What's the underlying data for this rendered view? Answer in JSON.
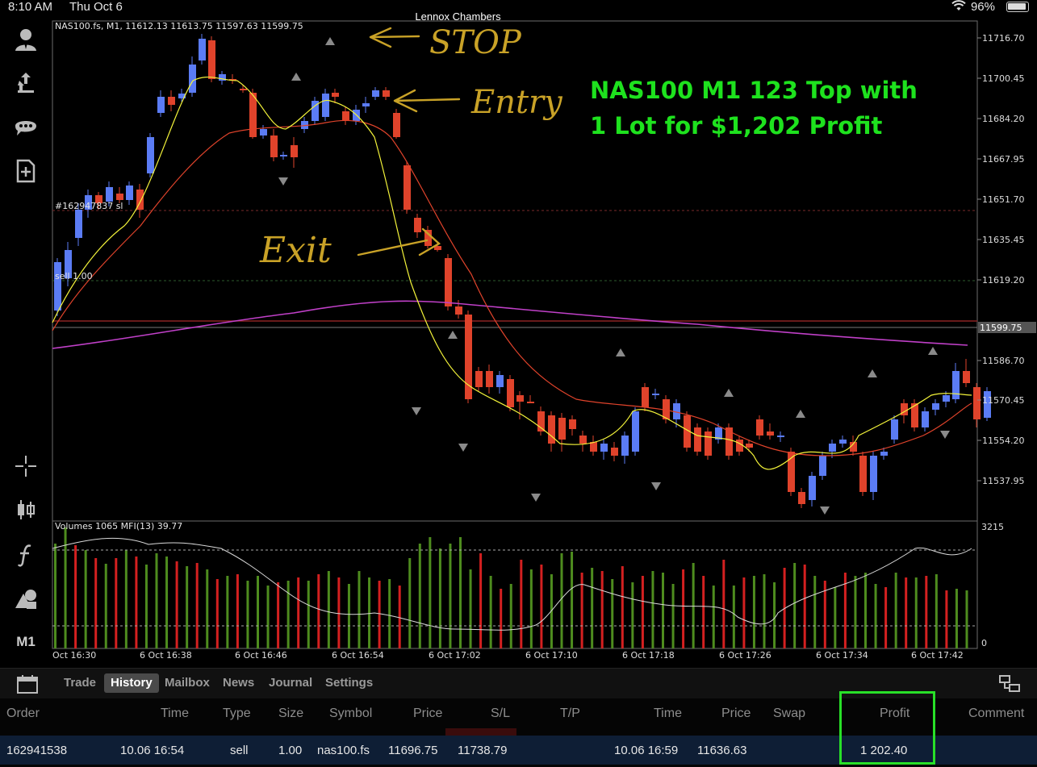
{
  "status_bar": {
    "time": "8:10 AM",
    "date": "Thu Oct 6",
    "owner": "Lennox Chambers",
    "battery": "96%"
  },
  "toolbar": {
    "items": [
      "account-icon",
      "transfer-icon",
      "chat-icon",
      "new-order-icon",
      "crosshair-icon",
      "candlestick-icon",
      "indicator-icon",
      "objects-icon"
    ],
    "timeframe": "M1"
  },
  "chart": {
    "info": "NAS100.fs, M1, 11612.13 11613.75 11597.63 11599.75",
    "order_label": "#162947837 sl",
    "position_label": "sell 1.00",
    "price_ticks": [
      "11716.70",
      "11700.45",
      "11684.20",
      "11667.95",
      "11651.70",
      "11635.45",
      "11619.20",
      "11586.70",
      "11570.45",
      "11554.20",
      "11537.95"
    ],
    "current_price": "11599.75",
    "volume_label": "Volumes 1065 MFI(13) 39.77",
    "volume_max": "3215",
    "volume_min": "0",
    "time_ticks": [
      "Oct 16:30",
      "6 Oct 16:38",
      "6 Oct 16:46",
      "6 Oct 16:54",
      "6 Oct 17:02",
      "6 Oct 17:10",
      "6 Oct 17:18",
      "6 Oct 17:26",
      "6 Oct 17:34",
      "6 Oct 17:42"
    ],
    "colors": {
      "bull": "#5b7cf5",
      "bear": "#e0432b",
      "ma_fast": "#f4f43a",
      "ma_slow": "#e0432b",
      "ma_long": "#c040c8",
      "vol_up": "#4e8c1e",
      "vol_down": "#d42020",
      "annotation": "#c9a227"
    }
  },
  "annotations": {
    "stop": "STOP",
    "entry": "Entry",
    "exit": "Exit"
  },
  "headline": {
    "line1": "NAS100 M1 123 Top with",
    "line2": "1 Lot for $1,202 Profit"
  },
  "tabs": [
    {
      "label": "Trade",
      "active": false
    },
    {
      "label": "History",
      "active": true
    },
    {
      "label": "Mailbox",
      "active": false
    },
    {
      "label": "News",
      "active": false
    },
    {
      "label": "Journal",
      "active": false
    },
    {
      "label": "Settings",
      "active": false
    }
  ],
  "history": {
    "columns": [
      "Order",
      "Time",
      "Type",
      "Size",
      "Symbol",
      "Price",
      "S/L",
      "T/P",
      "Time",
      "Price",
      "Swap",
      "Profit",
      "Comment"
    ],
    "row": {
      "order": "162941538",
      "open_time": "10.06 16:54",
      "type": "sell",
      "size": "1.00",
      "symbol": "nas100.fs",
      "open_price": "11696.75",
      "sl": "11738.79",
      "tp": "",
      "close_time": "10.06 16:59",
      "close_price": "11636.63",
      "swap": "",
      "profit": "1 202.40",
      "comment": ""
    }
  }
}
